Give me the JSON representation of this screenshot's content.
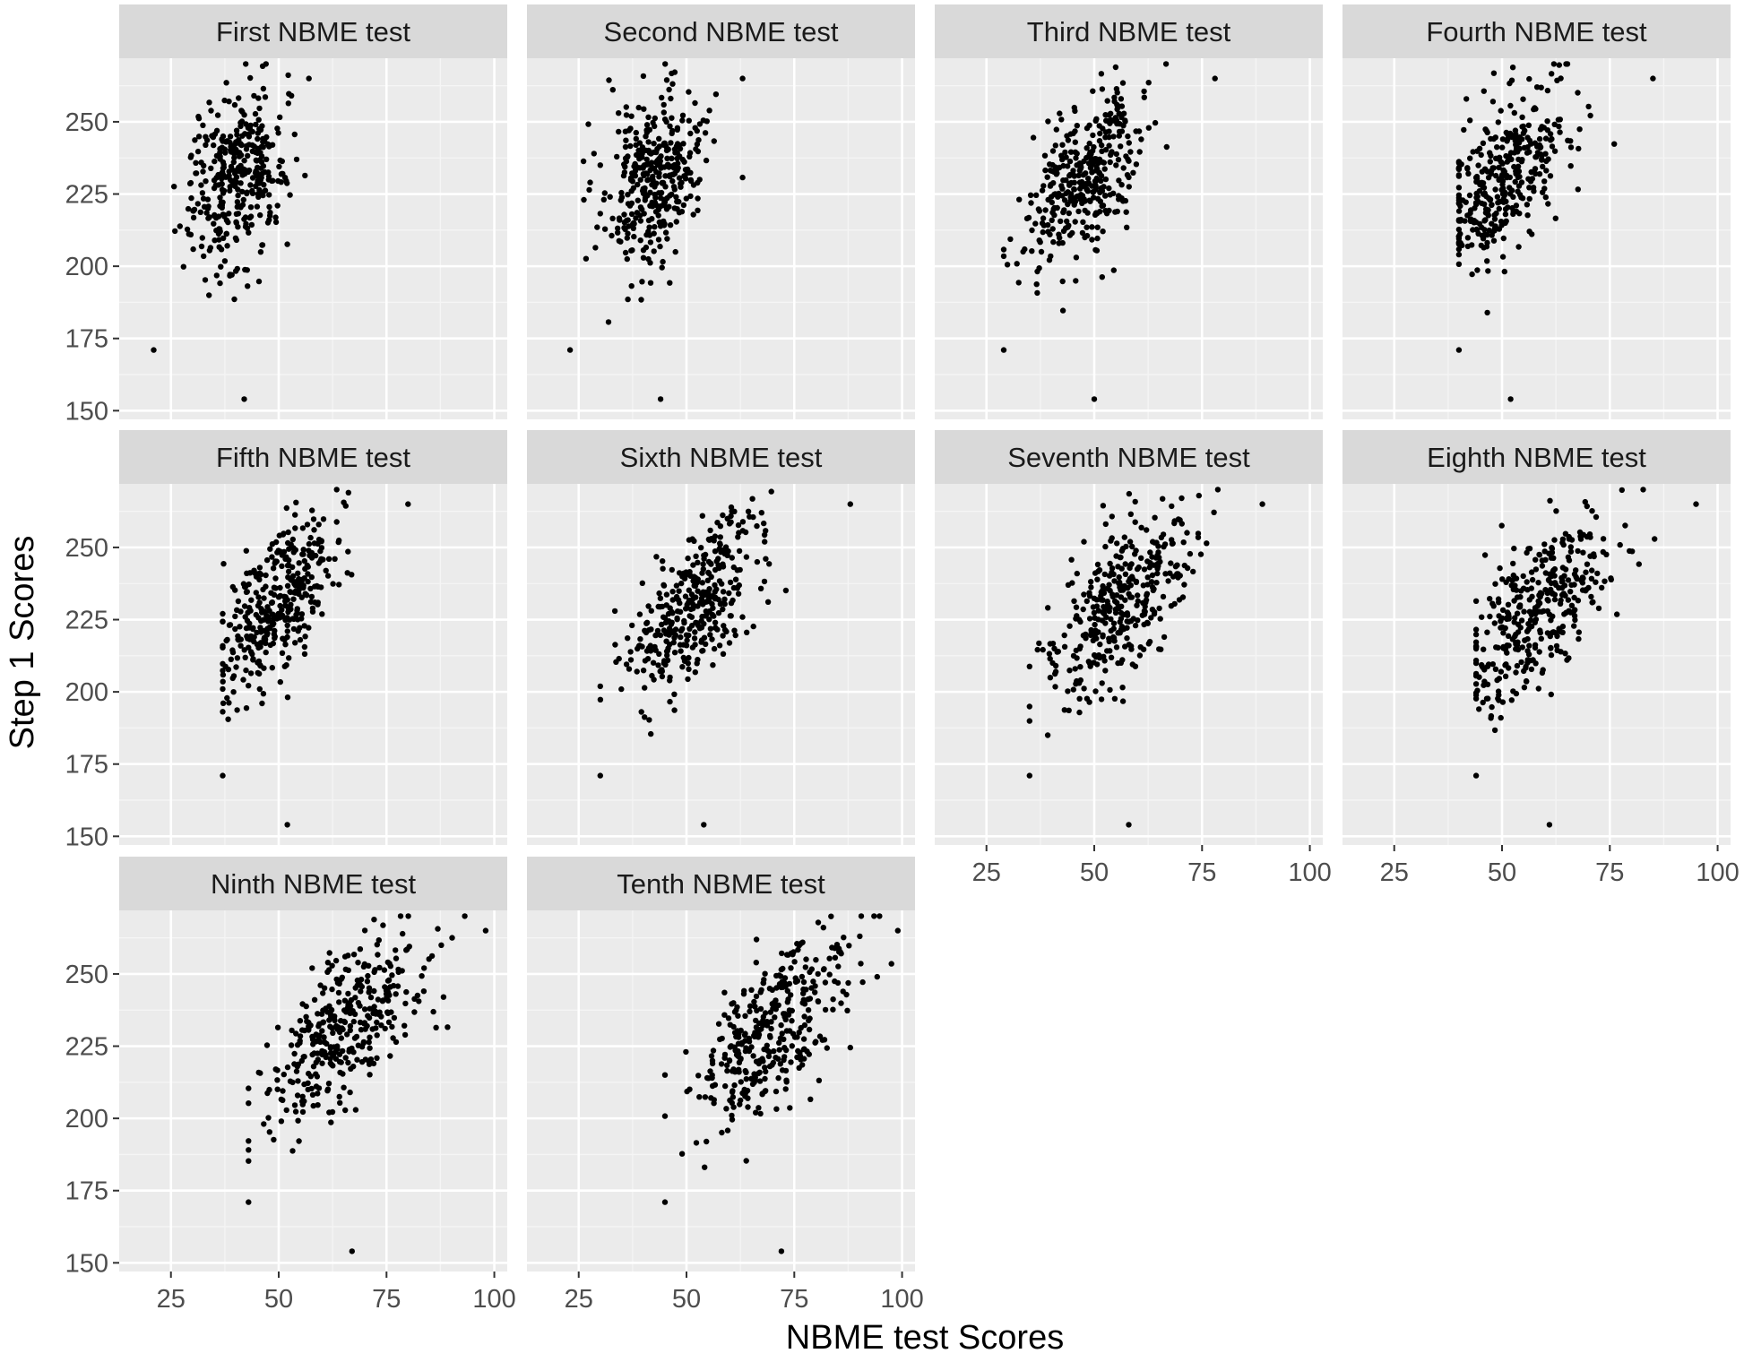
{
  "colors": {
    "panel_bg": "#ebebeb",
    "strip_bg": "#d9d9d9",
    "grid_major": "#ffffff",
    "grid_minor": "#f5f5f5",
    "point": "#000000",
    "tick": "#333333"
  },
  "chart_data": {
    "type": "scatter",
    "layout": "facet_wrap, 4 columns, shared axes",
    "xlabel": "NBME test Scores",
    "ylabel": "Step 1 Scores",
    "xlim": [
      13,
      103
    ],
    "ylim": [
      147,
      272
    ],
    "xticks": [
      25,
      50,
      75,
      100
    ],
    "yticks": [
      150,
      175,
      200,
      225,
      250
    ],
    "n_points_per_panel": 360,
    "grid": true,
    "panels": [
      {
        "label": "First NBME test",
        "slope": 0.55,
        "x_mean": 40,
        "x_sd": 5.5,
        "x_range": [
          21,
          57
        ]
      },
      {
        "label": "Second NBME test",
        "slope": 0.6,
        "x_mean": 42,
        "x_sd": 6,
        "x_range": [
          23,
          63
        ]
      },
      {
        "label": "Third NBME test",
        "slope": 1.15,
        "x_mean": 48,
        "x_sd": 6.5,
        "x_range": [
          29,
          78
        ]
      },
      {
        "label": "Fourth NBME test",
        "slope": 1.1,
        "x_mean": 50,
        "x_sd": 7.5,
        "x_range": [
          40,
          85
        ]
      },
      {
        "label": "Fifth NBME test",
        "slope": 1.35,
        "x_mean": 50,
        "x_sd": 7,
        "x_range": [
          37,
          80
        ]
      },
      {
        "label": "Sixth NBME test",
        "slope": 1.2,
        "x_mean": 52,
        "x_sd": 8,
        "x_range": [
          30,
          88
        ]
      },
      {
        "label": "Seventh NBME test",
        "slope": 1.25,
        "x_mean": 56,
        "x_sd": 8,
        "x_range": [
          35,
          89
        ]
      },
      {
        "label": "Eighth NBME test",
        "slope": 1.25,
        "x_mean": 59,
        "x_sd": 8.5,
        "x_range": [
          44,
          95
        ]
      },
      {
        "label": "Ninth NBME test",
        "slope": 1.1,
        "x_mean": 65,
        "x_sd": 9,
        "x_range": [
          43,
          98
        ]
      },
      {
        "label": "Tenth NBME test",
        "slope": 1.15,
        "x_mean": 70,
        "x_sd": 9,
        "x_range": [
          45,
          99
        ]
      }
    ],
    "summary": "Each panel plots Step 1 scores (about 154 to 270, centred near 230) against one NBME practice test; the positive correlation strengthens and the NBME scores shift right from the First to the Tenth test."
  }
}
